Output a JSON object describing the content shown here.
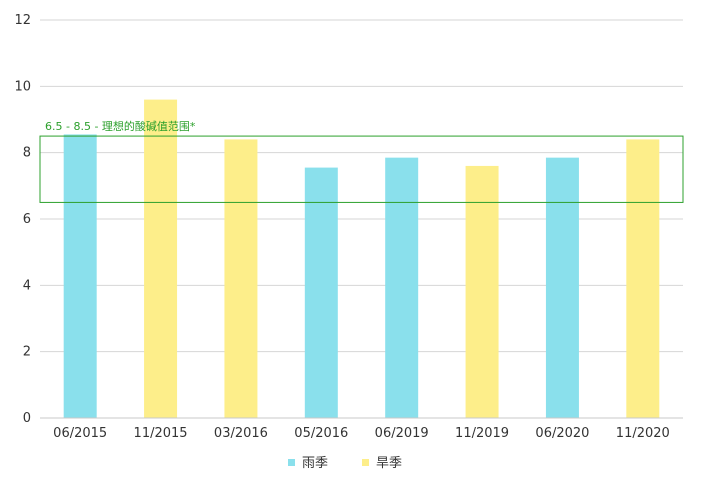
{
  "chart_data": {
    "type": "bar",
    "categories": [
      "06/2015",
      "11/2015",
      "03/2016",
      "05/2016",
      "06/2019",
      "11/2019",
      "06/2020",
      "11/2020"
    ],
    "values": [
      8.55,
      9.6,
      8.4,
      7.55,
      7.85,
      7.6,
      7.85,
      8.4
    ],
    "bar_series": [
      "rainy",
      "dry",
      "dry",
      "rainy",
      "rainy",
      "dry",
      "rainy",
      "dry"
    ],
    "series": [
      {
        "key": "rainy",
        "name": "雨季",
        "color": "#8ae0ec"
      },
      {
        "key": "dry",
        "name": "旱季",
        "color": "#fdee8a"
      }
    ],
    "ylim": [
      0,
      12
    ],
    "yticks": [
      0,
      2,
      4,
      6,
      8,
      10,
      12
    ],
    "grid": true,
    "legend_position": "bottom-center",
    "reference_band": {
      "low": 6.5,
      "high": 8.5,
      "label": "6.5 - 8.5 - 理想的酸碱值范围*",
      "color": "#2ca02c"
    },
    "title": "",
    "xlabel": "",
    "ylabel": ""
  }
}
